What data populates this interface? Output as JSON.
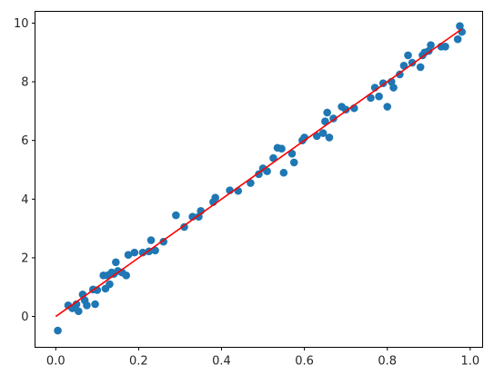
{
  "chart_data": {
    "type": "scatter",
    "title": "",
    "xlabel": "",
    "ylabel": "",
    "xlim": [
      -0.05,
      1.03
    ],
    "ylim": [
      -1.05,
      10.4
    ],
    "grid": false,
    "x_ticks": [
      {
        "value": 0.0,
        "label": "0.0"
      },
      {
        "value": 0.2,
        "label": "0.2"
      },
      {
        "value": 0.4,
        "label": "0.4"
      },
      {
        "value": 0.6,
        "label": "0.6"
      },
      {
        "value": 0.8,
        "label": "0.8"
      },
      {
        "value": 1.0,
        "label": "1.0"
      }
    ],
    "y_ticks": [
      {
        "value": 0,
        "label": "0"
      },
      {
        "value": 2,
        "label": "2"
      },
      {
        "value": 4,
        "label": "4"
      },
      {
        "value": 6,
        "label": "6"
      },
      {
        "value": 8,
        "label": "8"
      },
      {
        "value": 10,
        "label": "10"
      }
    ],
    "series": [
      {
        "kind": "scatter",
        "color": "#1f77b4",
        "points": [
          [
            0.005,
            -0.48
          ],
          [
            0.03,
            0.38
          ],
          [
            0.04,
            0.28
          ],
          [
            0.05,
            0.42
          ],
          [
            0.055,
            0.18
          ],
          [
            0.065,
            0.75
          ],
          [
            0.07,
            0.55
          ],
          [
            0.075,
            0.38
          ],
          [
            0.09,
            0.92
          ],
          [
            0.095,
            0.42
          ],
          [
            0.1,
            0.9
          ],
          [
            0.115,
            1.4
          ],
          [
            0.12,
            0.95
          ],
          [
            0.125,
            1.4
          ],
          [
            0.13,
            1.1
          ],
          [
            0.135,
            1.5
          ],
          [
            0.14,
            1.45
          ],
          [
            0.145,
            1.85
          ],
          [
            0.15,
            1.55
          ],
          [
            0.16,
            1.5
          ],
          [
            0.17,
            1.4
          ],
          [
            0.175,
            2.1
          ],
          [
            0.19,
            2.18
          ],
          [
            0.21,
            2.18
          ],
          [
            0.225,
            2.22
          ],
          [
            0.23,
            2.6
          ],
          [
            0.24,
            2.25
          ],
          [
            0.26,
            2.55
          ],
          [
            0.29,
            3.45
          ],
          [
            0.31,
            3.05
          ],
          [
            0.33,
            3.4
          ],
          [
            0.345,
            3.4
          ],
          [
            0.35,
            3.6
          ],
          [
            0.38,
            3.9
          ],
          [
            0.385,
            4.05
          ],
          [
            0.42,
            4.3
          ],
          [
            0.44,
            4.28
          ],
          [
            0.47,
            4.55
          ],
          [
            0.49,
            4.85
          ],
          [
            0.5,
            5.05
          ],
          [
            0.51,
            4.95
          ],
          [
            0.525,
            5.4
          ],
          [
            0.535,
            5.75
          ],
          [
            0.545,
            5.72
          ],
          [
            0.55,
            4.9
          ],
          [
            0.57,
            5.55
          ],
          [
            0.575,
            5.25
          ],
          [
            0.595,
            6.0
          ],
          [
            0.6,
            6.1
          ],
          [
            0.63,
            6.15
          ],
          [
            0.645,
            6.25
          ],
          [
            0.65,
            6.65
          ],
          [
            0.655,
            6.95
          ],
          [
            0.66,
            6.1
          ],
          [
            0.67,
            6.75
          ],
          [
            0.69,
            7.15
          ],
          [
            0.7,
            7.05
          ],
          [
            0.72,
            7.1
          ],
          [
            0.76,
            7.45
          ],
          [
            0.77,
            7.8
          ],
          [
            0.78,
            7.5
          ],
          [
            0.79,
            7.95
          ],
          [
            0.8,
            7.15
          ],
          [
            0.81,
            8.0
          ],
          [
            0.815,
            7.8
          ],
          [
            0.83,
            8.25
          ],
          [
            0.84,
            8.55
          ],
          [
            0.85,
            8.9
          ],
          [
            0.86,
            8.65
          ],
          [
            0.88,
            8.5
          ],
          [
            0.885,
            8.9
          ],
          [
            0.89,
            9.0
          ],
          [
            0.9,
            9.05
          ],
          [
            0.905,
            9.25
          ],
          [
            0.93,
            9.2
          ],
          [
            0.94,
            9.2
          ],
          [
            0.97,
            9.45
          ],
          [
            0.975,
            9.9
          ],
          [
            0.98,
            9.7
          ]
        ]
      },
      {
        "kind": "line",
        "color": "#ff0000",
        "points": [
          [
            0.0,
            0.0
          ],
          [
            0.98,
            9.8
          ]
        ]
      }
    ]
  }
}
